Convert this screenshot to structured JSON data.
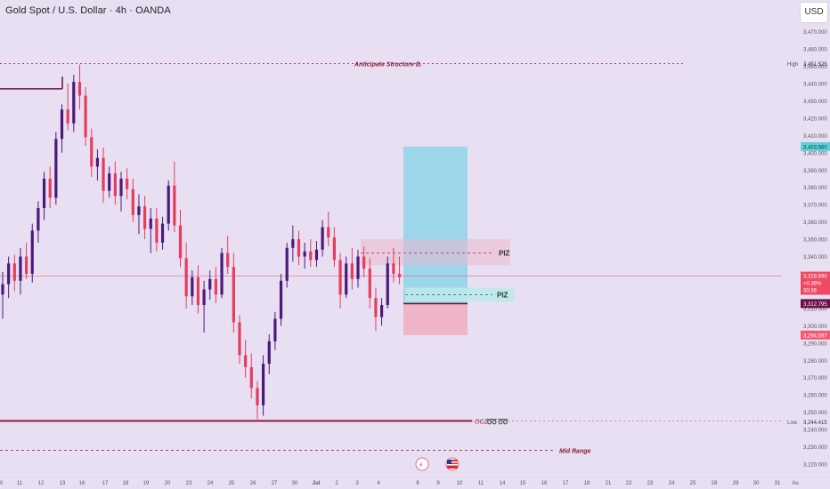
{
  "header": {
    "title": "Gold Spot / U.S. Dollar · 4h · OANDA",
    "currency_button": "USD"
  },
  "chart_data": {
    "type": "candlestick",
    "y_range": [
      3220,
      3477
    ],
    "y_ticks": [
      3220,
      3230,
      3240,
      3250,
      3260,
      3270,
      3280,
      3290,
      3300,
      3310,
      3320,
      3330,
      3340,
      3350,
      3360,
      3370,
      3380,
      3390,
      3400,
      3410,
      3420,
      3430,
      3440,
      3450,
      3460,
      3470
    ],
    "x_tick_labels": [
      "0",
      "11",
      "12",
      "13",
      "16",
      "17",
      "18",
      "19",
      "20",
      "23",
      "24",
      "25",
      "26",
      "27",
      "30",
      "Jul",
      "2",
      "3",
      "4",
      "8",
      "9",
      "10",
      "11",
      "14",
      "15",
      "16",
      "17",
      "18",
      "21",
      "22",
      "23",
      "24",
      "25",
      "28",
      "29",
      "30",
      "31",
      "Au"
    ],
    "price_labels": [
      {
        "text": "3,451.525",
        "kind": "plain",
        "tag": "High",
        "value": 3451.525
      },
      {
        "text": "3,403.560",
        "kind": "teal",
        "value": 3403.56
      },
      {
        "text": "3,328.690",
        "kind": "red-multi",
        "sub": [
          "+0.36%",
          "30:36"
        ],
        "value": 3328.69
      },
      {
        "text": "3,312.795",
        "kind": "dark",
        "value": 3312.795
      },
      {
        "text": "3,294.597",
        "kind": "red",
        "value": 3294.597
      },
      {
        "text": "3,244.415",
        "kind": "plain",
        "tag": "Low",
        "value": 3244.415
      }
    ],
    "annotations": {
      "high_line": {
        "label": "Anticipate Structure B.",
        "value": 3451.525
      },
      "piz_upper": {
        "label": "PIZ",
        "value": 3342
      },
      "piz_lower": {
        "label": "PIZ",
        "value": 3318
      },
      "ocz": {
        "label": "OCZ",
        "value": 3245
      },
      "mid_range": {
        "label": "Mid Range",
        "value": 3228
      },
      "current_line": {
        "value": 3328.69
      },
      "long_position": {
        "entry": 3312.795,
        "target": 3403.56,
        "stop": 3294.597
      }
    },
    "candles": [
      {
        "o": 3318,
        "h": 3331,
        "l": 3304,
        "c": 3324
      },
      {
        "o": 3324,
        "h": 3340,
        "l": 3316,
        "c": 3336
      },
      {
        "o": 3336,
        "h": 3341,
        "l": 3320,
        "c": 3326
      },
      {
        "o": 3326,
        "h": 3345,
        "l": 3318,
        "c": 3340
      },
      {
        "o": 3340,
        "h": 3348,
        "l": 3327,
        "c": 3330
      },
      {
        "o": 3330,
        "h": 3359,
        "l": 3325,
        "c": 3355
      },
      {
        "o": 3355,
        "h": 3372,
        "l": 3348,
        "c": 3368
      },
      {
        "o": 3368,
        "h": 3389,
        "l": 3361,
        "c": 3385
      },
      {
        "o": 3385,
        "h": 3392,
        "l": 3368,
        "c": 3374
      },
      {
        "o": 3374,
        "h": 3412,
        "l": 3370,
        "c": 3408
      },
      {
        "o": 3408,
        "h": 3428,
        "l": 3400,
        "c": 3425
      },
      {
        "o": 3425,
        "h": 3440,
        "l": 3413,
        "c": 3417
      },
      {
        "o": 3417,
        "h": 3445,
        "l": 3412,
        "c": 3441
      },
      {
        "o": 3441,
        "h": 3451,
        "l": 3425,
        "c": 3433
      },
      {
        "o": 3433,
        "h": 3438,
        "l": 3404,
        "c": 3409
      },
      {
        "o": 3409,
        "h": 3414,
        "l": 3386,
        "c": 3392
      },
      {
        "o": 3392,
        "h": 3402,
        "l": 3384,
        "c": 3397
      },
      {
        "o": 3397,
        "h": 3403,
        "l": 3371,
        "c": 3378
      },
      {
        "o": 3378,
        "h": 3392,
        "l": 3374,
        "c": 3388
      },
      {
        "o": 3388,
        "h": 3395,
        "l": 3370,
        "c": 3375
      },
      {
        "o": 3375,
        "h": 3389,
        "l": 3366,
        "c": 3385
      },
      {
        "o": 3385,
        "h": 3391,
        "l": 3373,
        "c": 3379
      },
      {
        "o": 3379,
        "h": 3385,
        "l": 3360,
        "c": 3364
      },
      {
        "o": 3364,
        "h": 3376,
        "l": 3353,
        "c": 3369
      },
      {
        "o": 3369,
        "h": 3375,
        "l": 3350,
        "c": 3356
      },
      {
        "o": 3356,
        "h": 3368,
        "l": 3342,
        "c": 3362
      },
      {
        "o": 3362,
        "h": 3368,
        "l": 3343,
        "c": 3348
      },
      {
        "o": 3348,
        "h": 3363,
        "l": 3344,
        "c": 3359
      },
      {
        "o": 3359,
        "h": 3384,
        "l": 3355,
        "c": 3381
      },
      {
        "o": 3381,
        "h": 3395,
        "l": 3354,
        "c": 3358
      },
      {
        "o": 3358,
        "h": 3367,
        "l": 3334,
        "c": 3339
      },
      {
        "o": 3339,
        "h": 3348,
        "l": 3310,
        "c": 3317
      },
      {
        "o": 3317,
        "h": 3332,
        "l": 3312,
        "c": 3328
      },
      {
        "o": 3328,
        "h": 3335,
        "l": 3307,
        "c": 3312
      },
      {
        "o": 3312,
        "h": 3326,
        "l": 3296,
        "c": 3321
      },
      {
        "o": 3321,
        "h": 3332,
        "l": 3315,
        "c": 3327
      },
      {
        "o": 3327,
        "h": 3334,
        "l": 3313,
        "c": 3318
      },
      {
        "o": 3318,
        "h": 3345,
        "l": 3316,
        "c": 3342
      },
      {
        "o": 3342,
        "h": 3352,
        "l": 3330,
        "c": 3334
      },
      {
        "o": 3334,
        "h": 3342,
        "l": 3296,
        "c": 3302
      },
      {
        "o": 3302,
        "h": 3306,
        "l": 3278,
        "c": 3283
      },
      {
        "o": 3283,
        "h": 3292,
        "l": 3270,
        "c": 3276
      },
      {
        "o": 3276,
        "h": 3284,
        "l": 3258,
        "c": 3264
      },
      {
        "o": 3264,
        "h": 3268,
        "l": 3246,
        "c": 3254
      },
      {
        "o": 3254,
        "h": 3283,
        "l": 3248,
        "c": 3278
      },
      {
        "o": 3278,
        "h": 3295,
        "l": 3272,
        "c": 3291
      },
      {
        "o": 3291,
        "h": 3308,
        "l": 3286,
        "c": 3304
      },
      {
        "o": 3304,
        "h": 3330,
        "l": 3300,
        "c": 3326
      },
      {
        "o": 3326,
        "h": 3348,
        "l": 3322,
        "c": 3345
      },
      {
        "o": 3345,
        "h": 3358,
        "l": 3337,
        "c": 3350
      },
      {
        "o": 3350,
        "h": 3355,
        "l": 3335,
        "c": 3340
      },
      {
        "o": 3340,
        "h": 3348,
        "l": 3333,
        "c": 3343
      },
      {
        "o": 3343,
        "h": 3350,
        "l": 3334,
        "c": 3338
      },
      {
        "o": 3338,
        "h": 3349,
        "l": 3334,
        "c": 3344
      },
      {
        "o": 3344,
        "h": 3361,
        "l": 3340,
        "c": 3357
      },
      {
        "o": 3357,
        "h": 3366,
        "l": 3346,
        "c": 3351
      },
      {
        "o": 3351,
        "h": 3357,
        "l": 3334,
        "c": 3338
      },
      {
        "o": 3338,
        "h": 3342,
        "l": 3310,
        "c": 3318
      },
      {
        "o": 3318,
        "h": 3340,
        "l": 3316,
        "c": 3336
      },
      {
        "o": 3336,
        "h": 3345,
        "l": 3321,
        "c": 3327
      },
      {
        "o": 3327,
        "h": 3344,
        "l": 3322,
        "c": 3340
      },
      {
        "o": 3340,
        "h": 3346,
        "l": 3328,
        "c": 3333
      },
      {
        "o": 3333,
        "h": 3339,
        "l": 3310,
        "c": 3316
      },
      {
        "o": 3316,
        "h": 3322,
        "l": 3297,
        "c": 3305
      },
      {
        "o": 3305,
        "h": 3316,
        "l": 3300,
        "c": 3312
      },
      {
        "o": 3312,
        "h": 3340,
        "l": 3310,
        "c": 3336
      },
      {
        "o": 3336,
        "h": 3345,
        "l": 3325,
        "c": 3330
      },
      {
        "o": 3330,
        "h": 3340,
        "l": 3324,
        "c": 3328
      }
    ]
  }
}
